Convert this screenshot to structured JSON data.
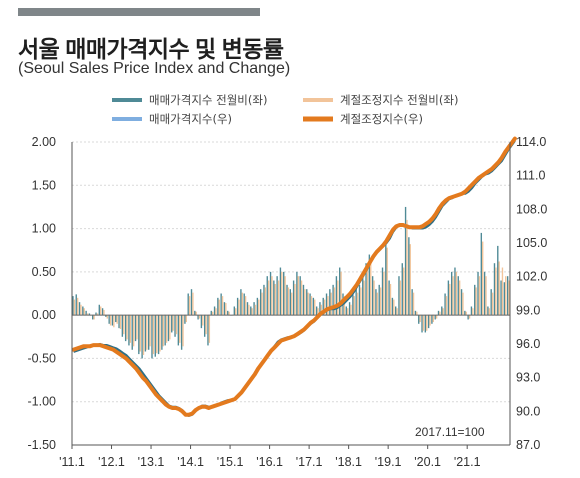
{
  "header": {
    "title": "서울 매매가격지수 및 변동률",
    "subtitle": "(Seoul Sales Price Index and Change)"
  },
  "chart_data": {
    "type": "bar+line",
    "note": "2017.11=100",
    "x_tick_labels": [
      "'11.1",
      "'12.1",
      "'13.1",
      "'14.1",
      "'15.1",
      "'16.1",
      "'17.1",
      "'18.1",
      "'19.1",
      "'20.1",
      "'21.1"
    ],
    "y_left": {
      "ticks": [
        "2.00",
        "1.50",
        "1.00",
        "0.50",
        "0.00",
        "-0.50",
        "-1.00",
        "-1.50"
      ],
      "range": [
        -1.5,
        2.0
      ]
    },
    "y_right": {
      "ticks": [
        "114.0",
        "111.0",
        "108.0",
        "105.0",
        "102.0",
        "99.0",
        "96.0",
        "93.0",
        "90.0",
        "87.0"
      ],
      "range": [
        87.0,
        114.0
      ]
    },
    "legend": [
      {
        "key": "bar_raw",
        "label": "매매가격지수 전월비(좌)",
        "color": "#4f8a96"
      },
      {
        "key": "bar_sa",
        "label": "계절조정지수 전월비(좌)",
        "color": "#f2c49a"
      },
      {
        "key": "line_raw",
        "label": "매매가격지수(우)",
        "color": "#7faee0"
      },
      {
        "key": "line_sa",
        "label": "계절조정지수(우)",
        "color": "#e37a1e"
      }
    ],
    "x_start": "2011-01",
    "monthly_change_raw": [
      0.22,
      0.24,
      0.15,
      0.1,
      0.05,
      0.02,
      -0.05,
      0.03,
      0.12,
      0.08,
      -0.02,
      -0.1,
      -0.12,
      -0.08,
      -0.15,
      -0.25,
      -0.3,
      -0.35,
      -0.4,
      -0.3,
      -0.45,
      -0.5,
      -0.42,
      -0.4,
      -0.5,
      -0.48,
      -0.45,
      -0.4,
      -0.35,
      -0.3,
      -0.2,
      -0.25,
      -0.35,
      -0.4,
      -0.1,
      0.25,
      0.3,
      0.05,
      -0.05,
      -0.15,
      -0.25,
      -0.35,
      0.05,
      0.1,
      0.2,
      0.25,
      0.15,
      0.05,
      0.0,
      0.1,
      0.2,
      0.3,
      0.25,
      0.15,
      0.1,
      0.15,
      0.2,
      0.3,
      0.35,
      0.45,
      0.5,
      0.4,
      0.45,
      0.55,
      0.5,
      0.35,
      0.3,
      0.4,
      0.5,
      0.45,
      0.35,
      0.3,
      0.25,
      0.2,
      0.1,
      0.15,
      0.2,
      0.25,
      0.3,
      0.35,
      0.45,
      0.55,
      0.25,
      0.1,
      0.15,
      0.25,
      0.3,
      0.35,
      0.45,
      0.6,
      0.7,
      0.45,
      0.3,
      0.35,
      0.55,
      0.85,
      0.4,
      0.2,
      0.1,
      0.45,
      0.6,
      1.25,
      0.9,
      0.3,
      0.05,
      -0.1,
      -0.2,
      -0.2,
      -0.15,
      -0.1,
      -0.05,
      0.05,
      0.1,
      0.25,
      0.4,
      0.5,
      0.55,
      0.45,
      0.3,
      0.05,
      -0.05,
      0.1,
      0.35,
      0.5,
      0.95,
      0.5,
      0.1,
      0.3,
      0.6,
      0.8,
      0.4,
      0.38,
      0.45
    ],
    "monthly_change_sa": [
      0.18,
      0.2,
      0.12,
      0.08,
      0.02,
      0.0,
      -0.05,
      0.02,
      0.1,
      0.06,
      -0.04,
      -0.12,
      -0.14,
      -0.1,
      -0.16,
      -0.22,
      -0.28,
      -0.32,
      -0.36,
      -0.28,
      -0.42,
      -0.46,
      -0.4,
      -0.36,
      -0.45,
      -0.44,
      -0.42,
      -0.36,
      -0.32,
      -0.28,
      -0.18,
      -0.22,
      -0.32,
      -0.36,
      -0.08,
      0.22,
      0.26,
      0.04,
      -0.04,
      -0.12,
      -0.22,
      -0.32,
      0.04,
      0.08,
      0.18,
      0.22,
      0.14,
      0.04,
      0.0,
      0.08,
      0.18,
      0.26,
      0.22,
      0.12,
      0.08,
      0.12,
      0.18,
      0.26,
      0.32,
      0.4,
      0.45,
      0.36,
      0.4,
      0.5,
      0.45,
      0.32,
      0.26,
      0.36,
      0.45,
      0.4,
      0.3,
      0.26,
      0.22,
      0.18,
      0.08,
      0.12,
      0.18,
      0.22,
      0.26,
      0.32,
      0.4,
      0.5,
      0.22,
      0.08,
      0.12,
      0.22,
      0.26,
      0.32,
      0.4,
      0.55,
      0.62,
      0.4,
      0.26,
      0.32,
      0.5,
      0.78,
      0.36,
      0.18,
      0.08,
      0.4,
      0.55,
      1.1,
      0.82,
      0.26,
      0.04,
      -0.08,
      -0.18,
      -0.18,
      -0.12,
      -0.08,
      -0.04,
      0.04,
      0.08,
      0.22,
      0.36,
      0.45,
      0.5,
      0.4,
      0.26,
      0.04,
      -0.04,
      0.08,
      0.32,
      0.45,
      0.85,
      0.45,
      0.08,
      0.26,
      0.55,
      0.62,
      0.55,
      0.45,
      0.4
    ],
    "index_raw": [
      95.3,
      95.4,
      95.5,
      95.6,
      95.7,
      95.8,
      95.9,
      95.9,
      96.0,
      95.9,
      95.9,
      95.8,
      95.7,
      95.6,
      95.4,
      95.2,
      95.0,
      94.7,
      94.4,
      94.1,
      93.8,
      93.4,
      93.0,
      92.6,
      92.2,
      91.8,
      91.4,
      91.1,
      90.8,
      90.5,
      90.4,
      90.4,
      90.3,
      90.1,
      89.7,
      89.6,
      89.7,
      90.0,
      90.3,
      90.5,
      90.5,
      90.4,
      90.4,
      90.5,
      90.6,
      90.8,
      90.9,
      91.0,
      91.0,
      91.1,
      91.3,
      91.6,
      92.0,
      92.4,
      92.8,
      93.3,
      93.8,
      94.2,
      94.6,
      95.0,
      95.4,
      95.8,
      96.2,
      96.4,
      96.5,
      96.6,
      96.6,
      96.7,
      96.8,
      97.0,
      97.2,
      97.5,
      97.8,
      98.0,
      98.3,
      98.6,
      98.8,
      99.0,
      99.1,
      99.1,
      99.2,
      99.4,
      99.6,
      99.9,
      100.2,
      100.6,
      101.1,
      101.6,
      102.1,
      102.6,
      103.2,
      103.7,
      104.1,
      104.4,
      104.7,
      105.0,
      105.4,
      106.0,
      106.4,
      106.6,
      106.6,
      106.5,
      106.4,
      106.3,
      106.3,
      106.3,
      106.3,
      106.4,
      106.6,
      106.9,
      107.3,
      107.8,
      108.3,
      108.6,
      108.9,
      109.0,
      109.2,
      109.3,
      109.4,
      109.4,
      109.6,
      109.9,
      110.3,
      110.6,
      110.9,
      111.1,
      111.2,
      111.4,
      111.7,
      112.0,
      112.3,
      112.8,
      113.3,
      113.7,
      114.1
    ],
    "index_sa": [
      95.5,
      95.6,
      95.7,
      95.8,
      95.8,
      95.8,
      95.9,
      95.9,
      95.9,
      95.8,
      95.7,
      95.6,
      95.5,
      95.3,
      95.1,
      94.9,
      94.7,
      94.4,
      94.1,
      93.8,
      93.4,
      93.0,
      92.7,
      92.3,
      91.9,
      91.5,
      91.2,
      90.9,
      90.6,
      90.4,
      90.3,
      90.3,
      90.2,
      90.0,
      89.7,
      89.7,
      89.8,
      90.1,
      90.3,
      90.4,
      90.4,
      90.3,
      90.4,
      90.5,
      90.6,
      90.7,
      90.8,
      90.9,
      91.0,
      91.1,
      91.4,
      91.7,
      92.1,
      92.5,
      92.9,
      93.3,
      93.8,
      94.2,
      94.6,
      95.0,
      95.4,
      95.7,
      96.0,
      96.3,
      96.4,
      96.5,
      96.6,
      96.7,
      96.9,
      97.1,
      97.3,
      97.6,
      97.9,
      98.1,
      98.4,
      98.7,
      98.9,
      99.1,
      99.2,
      99.3,
      99.4,
      99.6,
      99.9,
      100.2,
      100.5,
      100.9,
      101.3,
      101.8,
      102.3,
      102.8,
      103.3,
      103.8,
      104.2,
      104.5,
      104.8,
      105.2,
      105.7,
      106.2,
      106.5,
      106.6,
      106.6,
      106.5,
      106.4,
      106.4,
      106.4,
      106.4,
      106.5,
      106.7,
      106.9,
      107.2,
      107.6,
      108.1,
      108.5,
      108.8,
      109.0,
      109.1,
      109.2,
      109.3,
      109.4,
      109.6,
      109.9,
      110.2,
      110.5,
      110.8,
      111.0,
      111.2,
      111.4,
      111.6,
      111.9,
      112.2,
      112.6,
      113.1,
      113.5,
      113.9,
      114.3
    ]
  }
}
